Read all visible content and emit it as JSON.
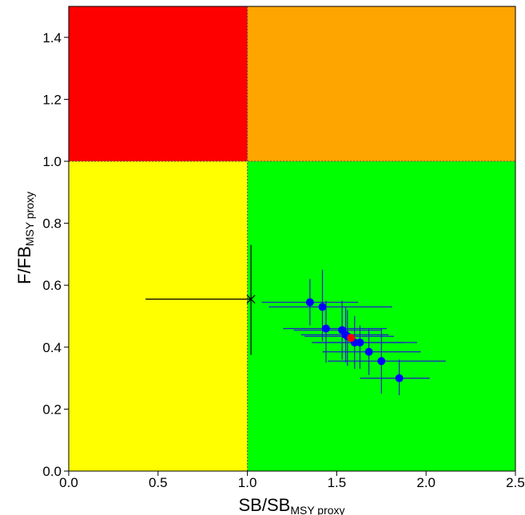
{
  "chart_data": {
    "type": "scatter",
    "title": "",
    "xlabel": {
      "main": "SB",
      "sep": "/",
      "denom": "SB",
      "sub": "MSY proxy"
    },
    "ylabel": {
      "main": "F",
      "sep": "/",
      "denom": "FB",
      "sub": "MSY proxy"
    },
    "xlim": [
      0,
      2.5
    ],
    "ylim": [
      0,
      1.5
    ],
    "x_ticks": [
      "0.0",
      "0.5",
      "1.0",
      "1.5",
      "2.0",
      "2.5"
    ],
    "y_ticks": [
      "0.0",
      "0.2",
      "0.4",
      "0.6",
      "0.8",
      "1.0",
      "1.2",
      "1.4"
    ],
    "quadrant_split": {
      "x": 1.0,
      "y": 1.0
    },
    "quadrants": [
      {
        "region": "x<1, y>1",
        "color": "#ff0000"
      },
      {
        "region": "x>1, y>1",
        "color": "#ffa500"
      },
      {
        "region": "x<1, y<1",
        "color": "#ffff00"
      },
      {
        "region": "x>1, y<1",
        "color": "#00ff00"
      }
    ],
    "series": [
      {
        "marker": "circle",
        "color": "#0000ff",
        "points": [
          {
            "x": 1.35,
            "y": 0.545,
            "xmin": 1.08,
            "xmax": 1.62,
            "ymin": 0.47,
            "ymax": 0.62
          },
          {
            "x": 1.42,
            "y": 0.53,
            "xmin": 1.12,
            "xmax": 1.81,
            "ymin": 0.42,
            "ymax": 0.65
          },
          {
            "x": 1.44,
            "y": 0.46,
            "xmin": 1.2,
            "xmax": 1.78,
            "ymin": 0.35,
            "ymax": 0.55
          },
          {
            "x": 1.53,
            "y": 0.455,
            "xmin": 1.26,
            "xmax": 1.75,
            "ymin": 0.36,
            "ymax": 0.55
          },
          {
            "x": 1.55,
            "y": 0.44,
            "xmin": 1.3,
            "xmax": 1.79,
            "ymin": 0.35,
            "ymax": 0.53
          },
          {
            "x": 1.56,
            "y": 0.435,
            "xmin": 1.32,
            "xmax": 1.82,
            "ymin": 0.34,
            "ymax": 0.52
          },
          {
            "x": 1.6,
            "y": 0.415,
            "xmin": 1.36,
            "xmax": 1.88,
            "ymin": 0.33,
            "ymax": 0.5
          },
          {
            "x": 1.63,
            "y": 0.415,
            "xmin": 1.38,
            "xmax": 1.95,
            "ymin": 0.33,
            "ymax": 0.47
          },
          {
            "x": 1.68,
            "y": 0.385,
            "xmin": 1.42,
            "xmax": 1.97,
            "ymin": 0.31,
            "ymax": 0.46
          },
          {
            "x": 1.75,
            "y": 0.355,
            "xmin": 1.45,
            "xmax": 2.11,
            "ymin": 0.25,
            "ymax": 0.46
          },
          {
            "x": 1.85,
            "y": 0.3,
            "xmin": 1.63,
            "xmax": 2.02,
            "ymin": 0.245,
            "ymax": 0.36
          }
        ]
      },
      {
        "marker": "circle",
        "color": "#ff0000",
        "points": [
          {
            "x": 1.58,
            "y": 0.43,
            "xmin": 1.58,
            "xmax": 1.58,
            "ymin": 0.43,
            "ymax": 0.43
          }
        ]
      },
      {
        "marker": "x",
        "color": "#000000",
        "points": [
          {
            "x": 1.02,
            "y": 0.555,
            "xmin": 0.43,
            "xmax": 1.02,
            "ymin": 0.375,
            "ymax": 0.73
          }
        ]
      }
    ]
  }
}
